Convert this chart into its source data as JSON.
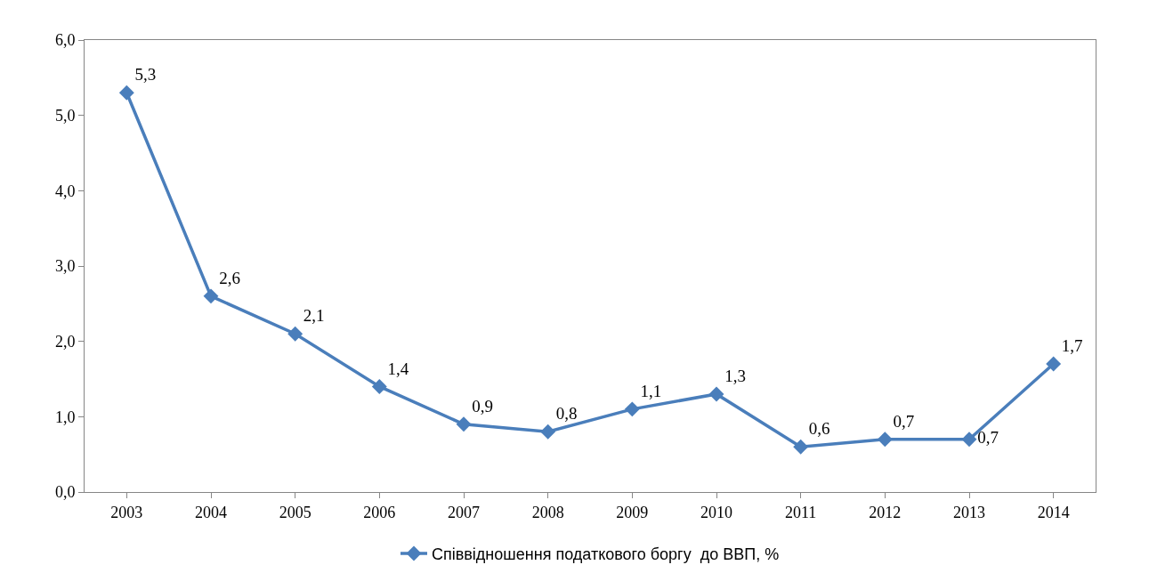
{
  "chart_data": {
    "type": "line",
    "categories": [
      "2003",
      "2004",
      "2005",
      "2006",
      "2007",
      "2008",
      "2009",
      "2010",
      "2011",
      "2012",
      "2013",
      "2014"
    ],
    "series": [
      {
        "name": "Співвідношення податкового боргу  до ВВП, %",
        "color": "#4a7ebb",
        "values": [
          5.3,
          2.6,
          2.1,
          1.4,
          0.9,
          0.8,
          1.1,
          1.3,
          0.6,
          0.7,
          0.7,
          1.7
        ],
        "value_labels": [
          "5,3",
          "2,6",
          "2,1",
          "1,4",
          "0,9",
          "0,8",
          "1,1",
          "1,3",
          "0,6",
          "0,7",
          "0,7",
          "1,7"
        ]
      }
    ],
    "ylim": [
      0,
      6
    ],
    "yticks": [
      {
        "value": 0,
        "label": "0,0"
      },
      {
        "value": 1,
        "label": "1,0"
      },
      {
        "value": 2,
        "label": "2,0"
      },
      {
        "value": 3,
        "label": "3,0"
      },
      {
        "value": 4,
        "label": "4,0"
      },
      {
        "value": 5,
        "label": "5,0"
      },
      {
        "value": 6,
        "label": "6,0"
      }
    ],
    "legend": "bottom",
    "marker": "diamond",
    "line_style": "solid"
  }
}
